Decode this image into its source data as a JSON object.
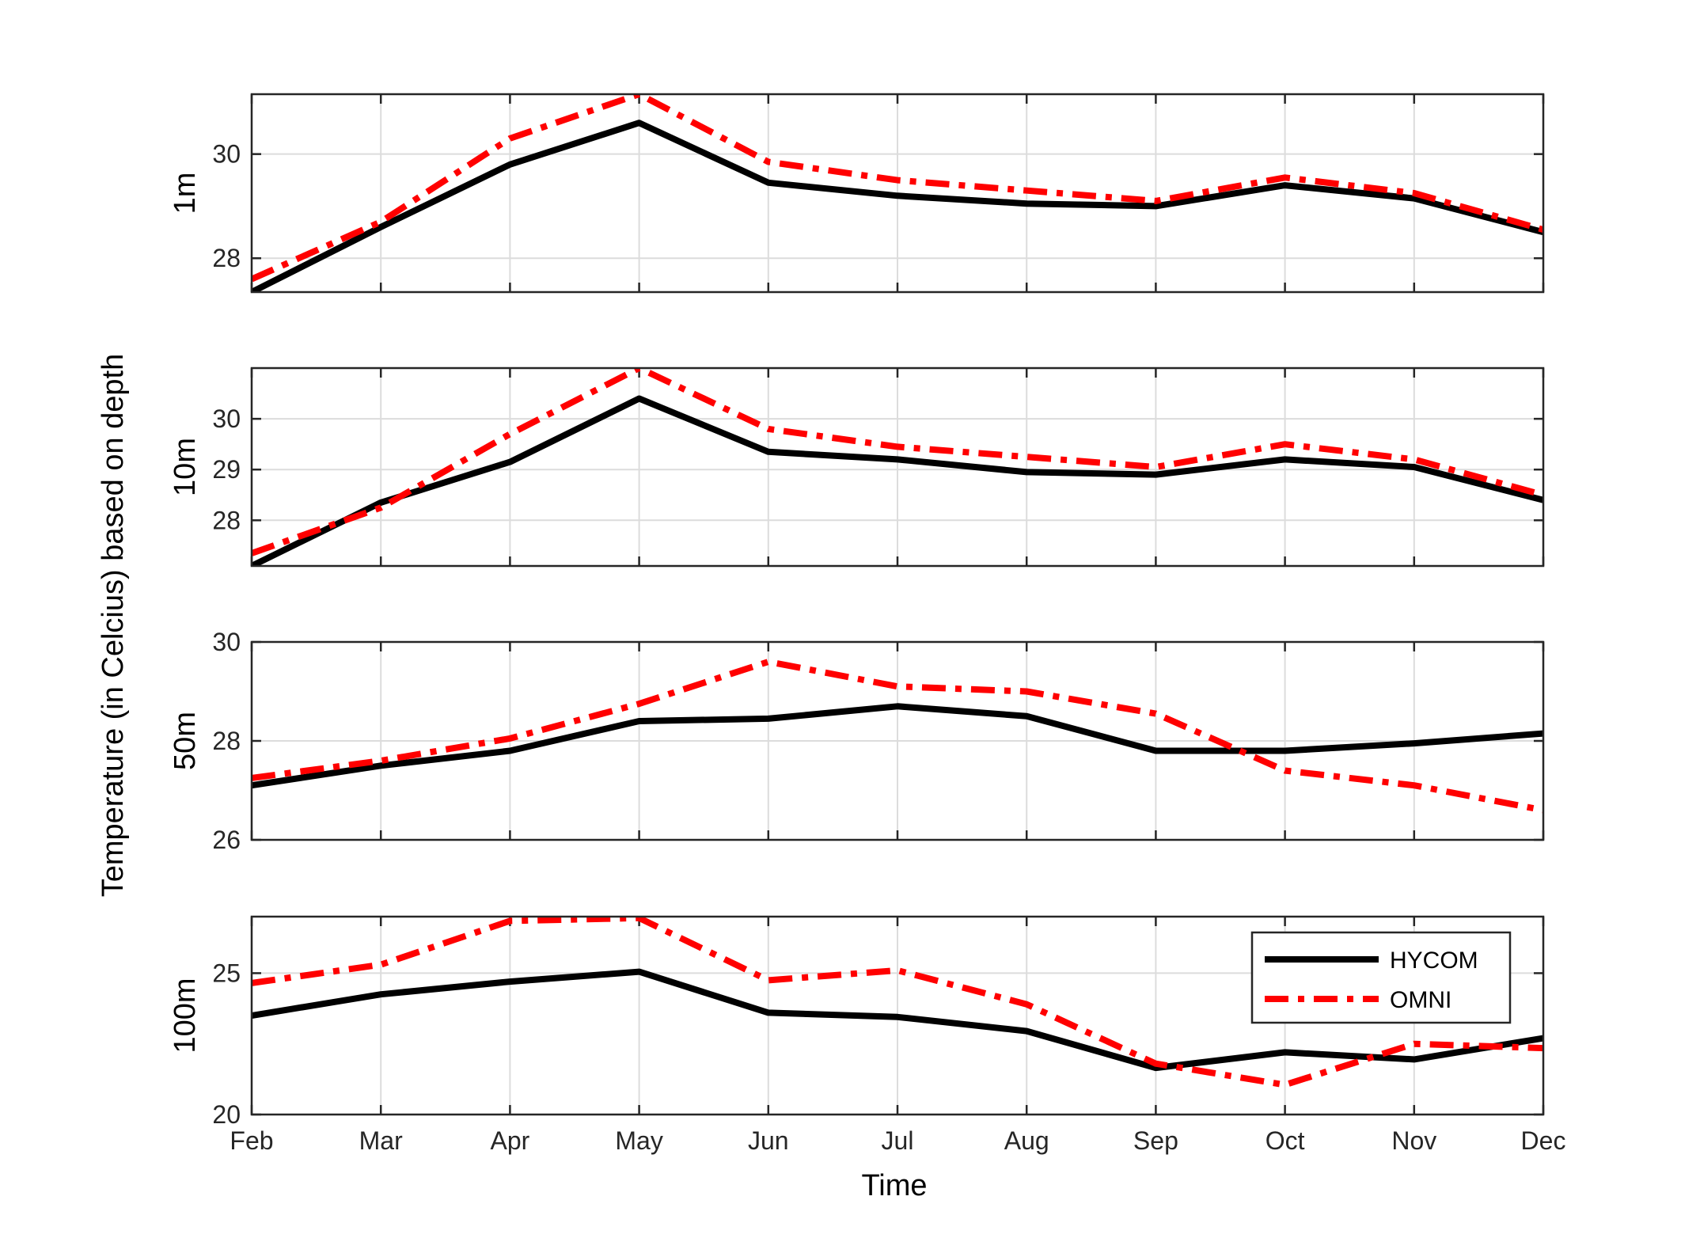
{
  "figure": {
    "ylabel": "Temperature (in Celcius) based on depth",
    "xlabel": "Time"
  },
  "legend": {
    "entries": [
      "HYCOM",
      "OMNI"
    ],
    "placement": "upper-right of bottom panel"
  },
  "colors": {
    "HYCOM": "#000000",
    "OMNI": "#ff0000"
  },
  "chart_data": [
    {
      "type": "line",
      "panel": "1m",
      "ylabel": "1m",
      "categories": [
        "Feb",
        "Mar",
        "Apr",
        "May",
        "Jun",
        "Jul",
        "Aug",
        "Sep",
        "Oct",
        "Nov",
        "Dec"
      ],
      "ylim": [
        27.35,
        31.15
      ],
      "yticks": [
        28,
        30
      ],
      "grid": true,
      "series": [
        {
          "name": "HYCOM",
          "style": "solid",
          "values": [
            27.35,
            28.6,
            29.8,
            30.6,
            29.45,
            29.2,
            29.05,
            29.0,
            29.4,
            29.15,
            28.5
          ]
        },
        {
          "name": "OMNI",
          "style": "dash-dot",
          "values": [
            27.6,
            28.7,
            30.3,
            31.15,
            29.85,
            29.5,
            29.3,
            29.1,
            29.55,
            29.25,
            28.55
          ]
        }
      ]
    },
    {
      "type": "line",
      "panel": "10m",
      "ylabel": "10m",
      "categories": [
        "Feb",
        "Mar",
        "Apr",
        "May",
        "Jun",
        "Jul",
        "Aug",
        "Sep",
        "Oct",
        "Nov",
        "Dec"
      ],
      "ylim": [
        27.1,
        31.0
      ],
      "yticks": [
        28,
        29,
        30
      ],
      "grid": true,
      "series": [
        {
          "name": "HYCOM",
          "style": "solid",
          "values": [
            27.1,
            28.35,
            29.15,
            30.4,
            29.35,
            29.2,
            28.95,
            28.9,
            29.2,
            29.05,
            28.4
          ]
        },
        {
          "name": "OMNI",
          "style": "dash-dot",
          "values": [
            27.35,
            28.25,
            29.7,
            31.0,
            29.8,
            29.45,
            29.25,
            29.05,
            29.5,
            29.2,
            28.5
          ]
        }
      ]
    },
    {
      "type": "line",
      "panel": "50m",
      "ylabel": "50m",
      "categories": [
        "Feb",
        "Mar",
        "Apr",
        "May",
        "Jun",
        "Jul",
        "Aug",
        "Sep",
        "Oct",
        "Nov",
        "Dec"
      ],
      "ylim": [
        26,
        30
      ],
      "yticks": [
        26,
        28,
        30
      ],
      "grid": true,
      "series": [
        {
          "name": "HYCOM",
          "style": "solid",
          "values": [
            27.1,
            27.5,
            27.8,
            28.4,
            28.45,
            28.7,
            28.5,
            27.8,
            27.8,
            27.95,
            28.15
          ]
        },
        {
          "name": "OMNI",
          "style": "dash-dot",
          "values": [
            27.25,
            27.6,
            28.05,
            28.75,
            29.6,
            29.1,
            29.0,
            28.55,
            27.4,
            27.1,
            26.6
          ]
        }
      ]
    },
    {
      "type": "line",
      "panel": "100m",
      "ylabel": "100m",
      "categories": [
        "Feb",
        "Mar",
        "Apr",
        "May",
        "Jun",
        "Jul",
        "Aug",
        "Sep",
        "Oct",
        "Nov",
        "Dec"
      ],
      "ylim": [
        20,
        27
      ],
      "yticks": [
        20,
        25
      ],
      "grid": true,
      "series": [
        {
          "name": "HYCOM",
          "style": "solid",
          "values": [
            23.5,
            24.25,
            24.7,
            25.05,
            23.6,
            23.45,
            22.95,
            21.65,
            22.2,
            21.95,
            22.7
          ]
        },
        {
          "name": "OMNI",
          "style": "dash-dot",
          "values": [
            24.65,
            25.3,
            26.85,
            26.95,
            24.75,
            25.1,
            23.9,
            21.8,
            21.05,
            22.5,
            22.35
          ]
        }
      ]
    }
  ]
}
